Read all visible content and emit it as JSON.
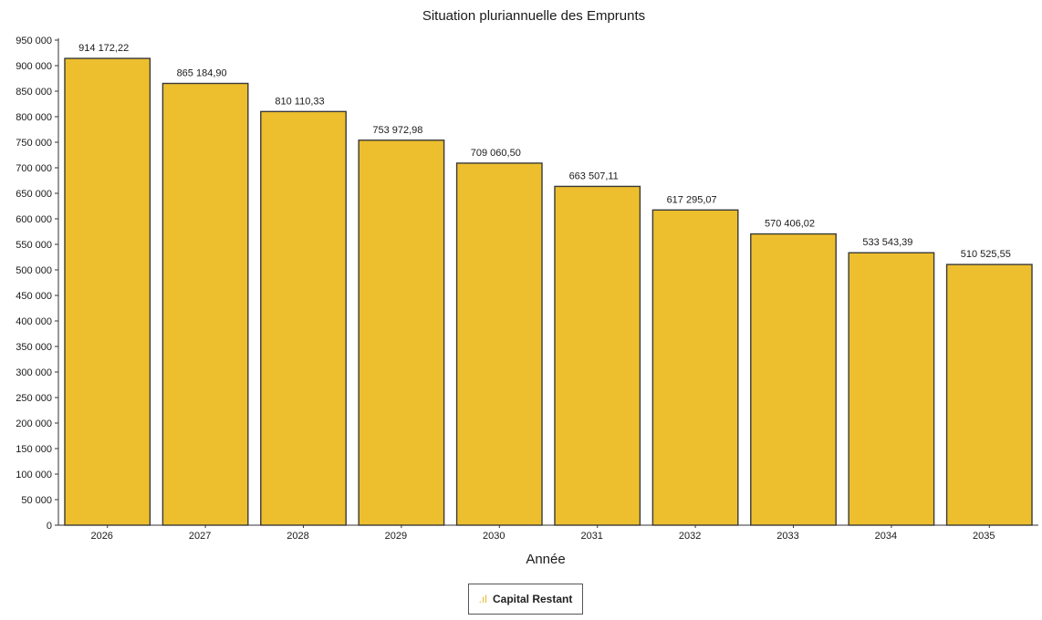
{
  "chart_data": {
    "type": "bar",
    "title": "Situation pluriannuelle des Emprunts",
    "xlabel": "Année",
    "ylabel": "",
    "categories": [
      "2026",
      "2027",
      "2028",
      "2029",
      "2030",
      "2031",
      "2032",
      "2033",
      "2034",
      "2035"
    ],
    "series": [
      {
        "name": "Capital Restant",
        "values": [
          914172.22,
          865184.9,
          810110.33,
          753972.98,
          709060.5,
          663507.11,
          617295.07,
          570406.02,
          533543.39,
          510525.55
        ],
        "labels": [
          "914 172,22",
          "865 184,90",
          "810 110,33",
          "753 972,98",
          "709 060,50",
          "663 507,11",
          "617 295,07",
          "570 406,02",
          "533 543,39",
          "510 525,55"
        ]
      }
    ],
    "ylim": [
      0,
      950000
    ],
    "yticks": [
      0,
      50000,
      100000,
      150000,
      200000,
      250000,
      300000,
      350000,
      400000,
      450000,
      500000,
      550000,
      600000,
      650000,
      700000,
      750000,
      800000,
      850000,
      900000,
      950000
    ],
    "ytick_labels": [
      "0",
      "50 000",
      "100 000",
      "150 000",
      "200 000",
      "250 000",
      "300 000",
      "350 000",
      "400 000",
      "450 000",
      "500 000",
      "550 000",
      "600 000",
      "650 000",
      "700 000",
      "750 000",
      "800 000",
      "850 000",
      "900 000",
      "950 000"
    ],
    "grid": false,
    "legend_position": "bottom-center",
    "bar_color": "#EDBF2E",
    "bar_edge_color": "#3a3a3a",
    "legend_swatch_symbol": ".ıl"
  }
}
